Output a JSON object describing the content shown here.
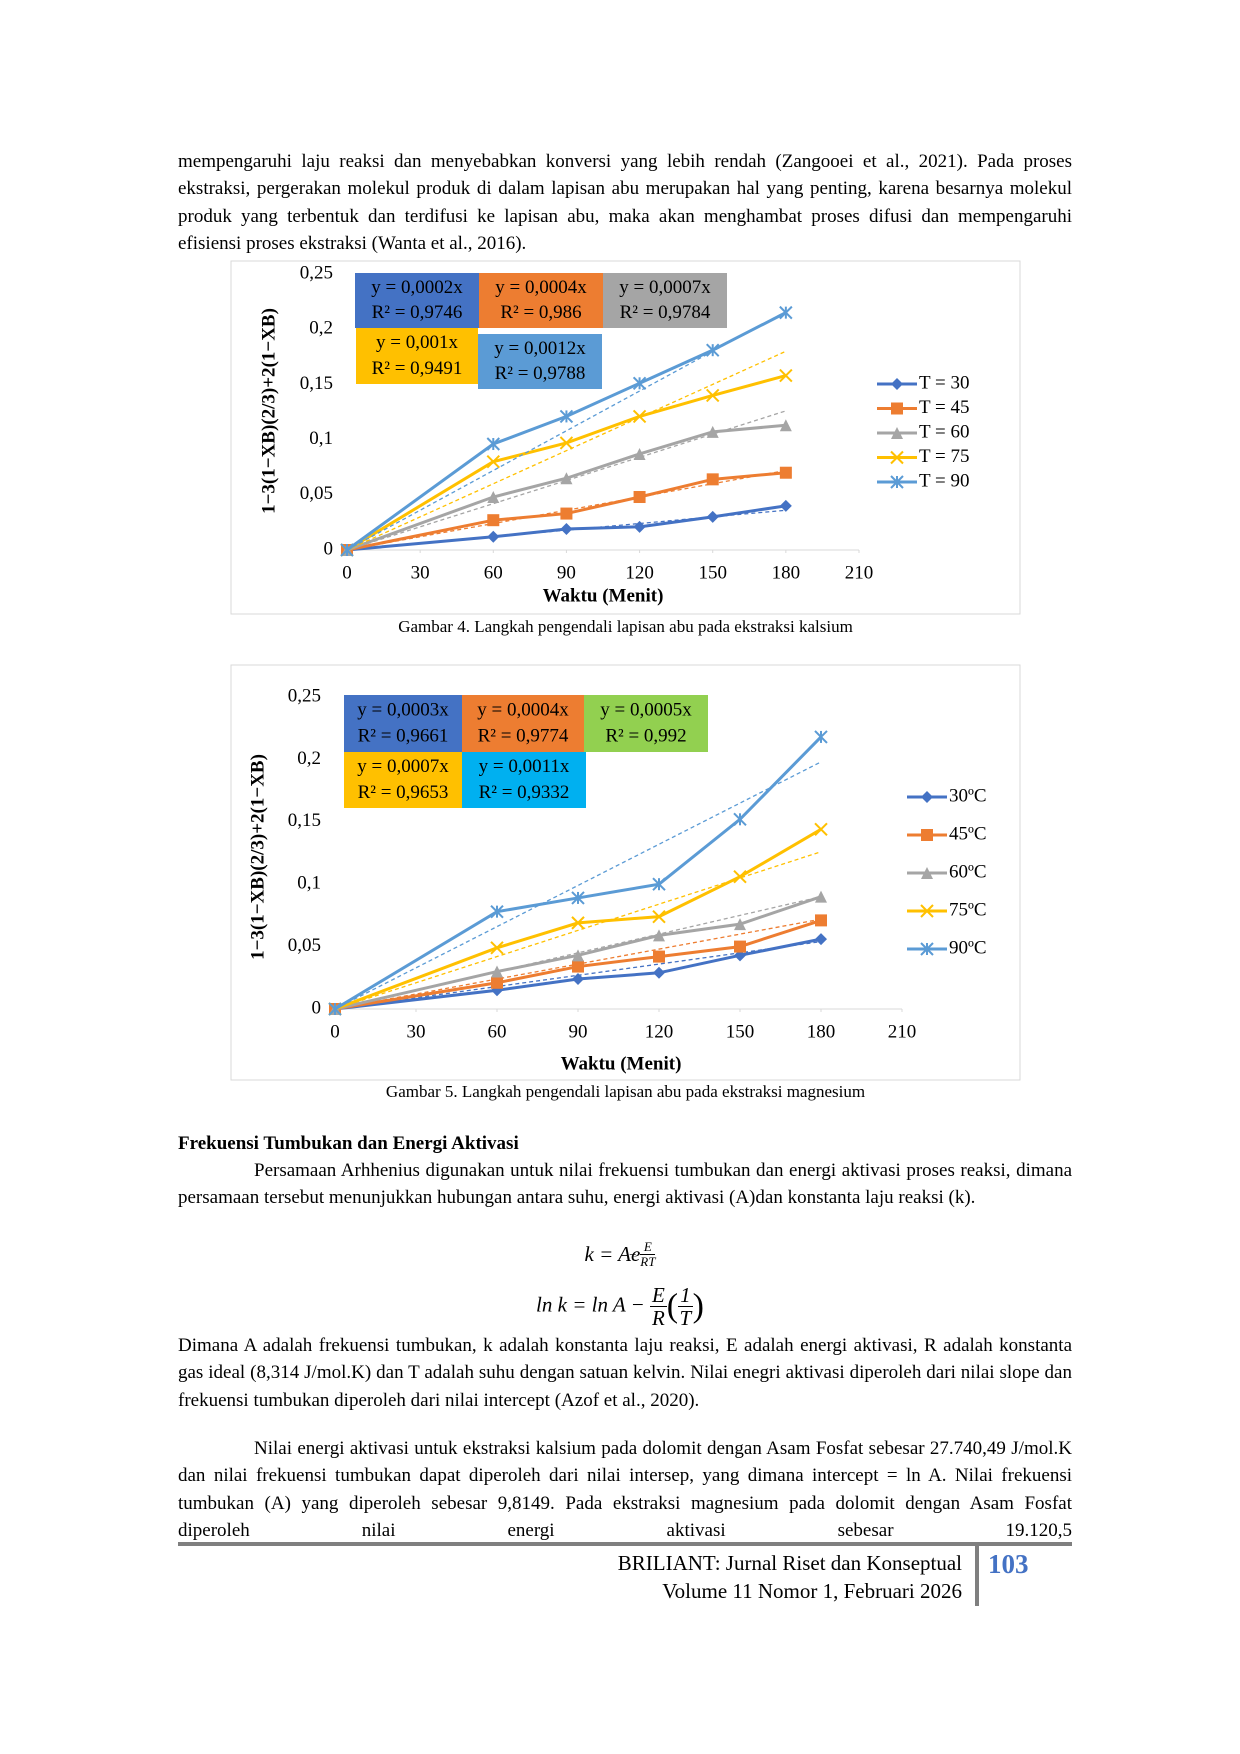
{
  "paragraphs": [
    "mempengaruhi laju reaksi dan menyebabkan konversi yang lebih rendah (Zangooei et al., 2021). Pada proses ekstraksi, pergerakan molekul produk di dalam  lapisan abu merupakan hal yang penting, karena besarnya molekul produk yang terbentuk dan terdifusi ke lapisan abu, maka akan menghambat proses difusi dan mempengaruhi efisiensi proses ekstraksi (Wanta et al., 2016).",
    "Persamaan Arhhenius digunakan untuk nilai frekuensi tumbukan dan energi aktivasi proses reaksi, dimana persamaan tersebut menunjukkan hubungan antara suhu, energi aktivasi (A)dan konstanta laju reaksi (k).",
    "Dimana A adalah frekuensi tumbukan, k adalah konstanta laju reaksi, E adalah energi aktivasi, R adalah konstanta gas ideal (8,314 J/mol.K) dan T adalah suhu dengan satuan kelvin. Nilai enegri aktivasi diperoleh dari nilai slope dan frekuensi tumbukan diperoleh dari nilai intercept (Azof et al., 2020).",
    "Nilai energi aktivasi untuk ekstraksi kalsium pada dolomit dengan Asam Fosfat sebesar 27.740,49 J/mol.K dan nilai frekuensi tumbukan dapat diperoleh dari nilai intersep, yang dimana intercept = ln A. Nilai frekuensi tumbukan (A) yang diperoleh sebesar 9,8149. Pada ekstraksi magnesium pada dolomit dengan Asam Fosfat diperoleh nilai energi aktivasi sebesar 19.120,5"
  ],
  "heading": "Frekuensi Tumbukan dan Energi Aktivasi",
  "equations": [
    {
      "lhs": "k = Ae",
      "sign": "−",
      "num": "E",
      "den": "RT"
    },
    {
      "lhs": "ln k = ln A −",
      "num": "E",
      "den": "R",
      "open": "(",
      "pnum": "1",
      "pden": "T",
      "close": ")"
    }
  ],
  "footer": {
    "journal": "BRILIANT: Jurnal Riset dan Konseptual",
    "volume": "Volume 11 Nomor 1, Februari 2026",
    "page": "103"
  },
  "chart_data": [
    {
      "type": "line",
      "caption": "Gambar 4. Langkah pengendali lapisan abu pada ekstraksi kalsium",
      "xlabel": "Waktu (Menit)",
      "ylabel": "1−3(1−XB)(2/3)+2(1−XB)",
      "x": [
        0,
        60,
        90,
        120,
        150,
        180
      ],
      "xlim": [
        0,
        210
      ],
      "xticks": [
        0,
        30,
        60,
        90,
        120,
        150,
        180,
        210
      ],
      "ylim": [
        0,
        0.25
      ],
      "yticks": [
        0,
        {
          "value": 0.05,
          "label": "0,05"
        },
        {
          "value": 0.1,
          "label": "0,1"
        },
        {
          "value": 0.15,
          "label": "0,15"
        },
        {
          "value": 0.2,
          "label": "0,2"
        },
        {
          "value": 0.25,
          "label": "0,25"
        }
      ],
      "series": [
        {
          "name": "T = 30",
          "color": "#4472c4",
          "marker": "diamond",
          "values": [
            0,
            0.012,
            0.019,
            0.021,
            0.03,
            0.04
          ],
          "trend": {
            "value": 0.0002,
            "label": "y = 0,0002x"
          },
          "r2": {
            "value": 0.9746,
            "label": "R² = 0,9746"
          },
          "label_color": "#4472c4"
        },
        {
          "name": "T = 45",
          "color": "#ed7d31",
          "marker": "square",
          "values": [
            0,
            0.027,
            0.033,
            0.048,
            0.064,
            0.07
          ],
          "trend": {
            "value": 0.0004,
            "label": "y = 0,0004x"
          },
          "r2": {
            "value": 0.986,
            "label": "R² = 0,986"
          },
          "label_color": "#ed7d31"
        },
        {
          "name": "T = 60",
          "color": "#a5a5a5",
          "marker": "triangle",
          "values": [
            0,
            0.048,
            0.065,
            0.087,
            0.107,
            0.113
          ],
          "trend": {
            "value": 0.0007,
            "label": "y = 0,0007x"
          },
          "r2": {
            "value": 0.9784,
            "label": "R² = 0,9784"
          },
          "label_color": "#a5a5a5"
        },
        {
          "name": "T = 75",
          "color": "#ffc000",
          "marker": "x",
          "values": [
            0,
            0.08,
            0.097,
            0.121,
            0.14,
            0.158
          ],
          "trend": {
            "value": 0.001,
            "label": "y = 0,001x"
          },
          "r2": {
            "value": 0.9491,
            "label": "R² = 0,9491"
          },
          "label_color": "#ffc000"
        },
        {
          "name": "T = 90",
          "color": "#5b9bd5",
          "marker": "star",
          "values": [
            0,
            0.096,
            0.121,
            0.151,
            0.181,
            0.215
          ],
          "trend": {
            "value": 0.0012,
            "label": "y = 0,0012x"
          },
          "r2": {
            "value": 0.9788,
            "label": "R² = 0,9788"
          },
          "label_color": "#5b9bd5"
        }
      ]
    },
    {
      "type": "line",
      "caption": "Gambar 5. Langkah pengendali lapisan abu pada ekstraksi magnesium",
      "xlabel": "Waktu (Menit)",
      "ylabel": "1−3(1−XB)(2/3)+2(1−XB)",
      "x": [
        0,
        60,
        90,
        120,
        150,
        180
      ],
      "xlim": [
        0,
        210
      ],
      "xticks": [
        0,
        30,
        60,
        90,
        120,
        150,
        180,
        210
      ],
      "ylim": [
        0,
        0.25
      ],
      "yticks": [
        0,
        {
          "value": 0.05,
          "label": "0,05"
        },
        {
          "value": 0.1,
          "label": "0,1"
        },
        {
          "value": 0.15,
          "label": "0,15"
        },
        {
          "value": 0.2,
          "label": "0,2"
        },
        {
          "value": 0.25,
          "label": "0,25"
        }
      ],
      "series": [
        {
          "name": "30ºC",
          "color": "#4472c4",
          "marker": "diamond",
          "values": [
            0,
            0.015,
            0.024,
            0.029,
            0.043,
            0.056
          ],
          "trend": {
            "value": 0.0003,
            "label": "y = 0,0003x"
          },
          "r2": {
            "value": 0.9661,
            "label": "R² = 0,9661"
          },
          "label_color": "#4472c4"
        },
        {
          "name": "45ºC",
          "color": "#ed7d31",
          "marker": "square",
          "values": [
            0,
            0.021,
            0.034,
            0.042,
            0.05,
            0.071
          ],
          "trend": {
            "value": 0.0004,
            "label": "y = 0,0004x"
          },
          "r2": {
            "value": 0.9774,
            "label": "R² = 0,9774"
          },
          "label_color": "#ed7d31"
        },
        {
          "name": "60ºC",
          "color": "#a5a5a5",
          "marker": "triangle",
          "values": [
            0,
            0.03,
            0.043,
            0.059,
            0.068,
            0.09
          ],
          "trend": {
            "value": 0.0005,
            "label": "y = 0,0005x"
          },
          "r2": {
            "value": 0.992,
            "label": "R² = 0,992"
          },
          "label_color": "#92d050"
        },
        {
          "name": "75ºC",
          "color": "#ffc000",
          "marker": "x",
          "values": [
            0,
            0.049,
            0.069,
            0.074,
            0.106,
            0.144
          ],
          "trend": {
            "value": 0.0007,
            "label": "y = 0,0007x"
          },
          "r2": {
            "value": 0.9653,
            "label": "R² = 0,9653"
          },
          "label_color": "#ffc000"
        },
        {
          "name": "90ºC",
          "color": "#5b9bd5",
          "marker": "star",
          "values": [
            0,
            0.078,
            0.089,
            0.1,
            0.152,
            0.218
          ],
          "trend": {
            "value": 0.0011,
            "label": "y = 0,0011x"
          },
          "r2": {
            "value": 0.9332,
            "label": "R² = 0,9332"
          },
          "label_color": "#00b0f0"
        }
      ]
    }
  ]
}
